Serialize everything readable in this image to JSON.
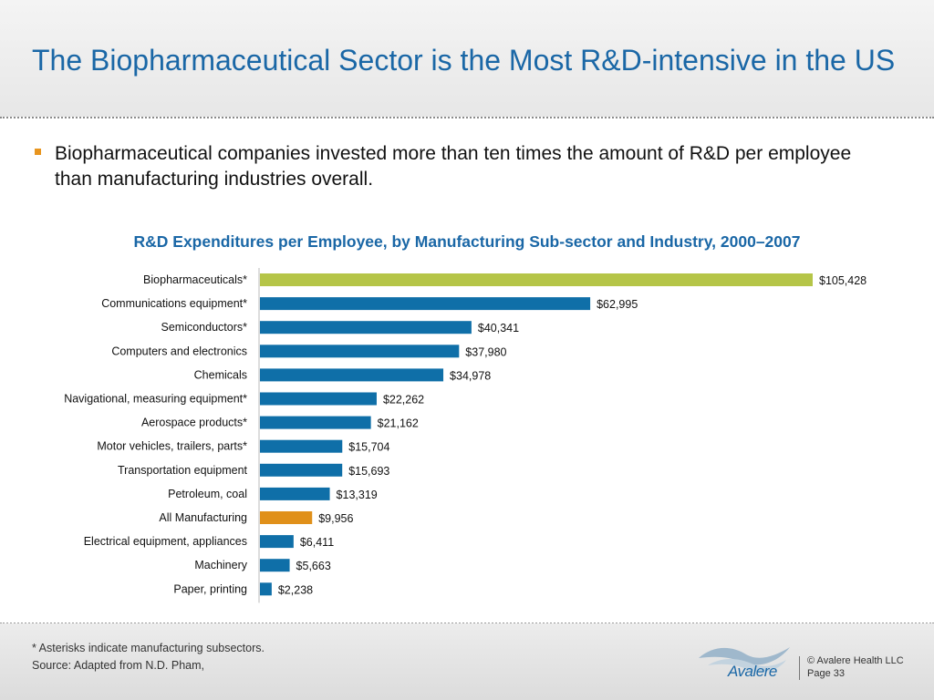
{
  "slide": {
    "title": "The Biopharmaceutical Sector is the Most R&D-intensive in the US",
    "bullet": "Biopharmaceutical companies invested more than ten times the amount of R&D per employee than manufacturing industries overall."
  },
  "chart_data": {
    "type": "bar",
    "orientation": "horizontal",
    "title": "R&D Expenditures per Employee, by Manufacturing Sub-sector and Industry, 2000–2007",
    "xlabel": "",
    "ylabel": "",
    "xlim": [
      0,
      110000
    ],
    "grid": false,
    "categories": [
      "Biopharmaceuticals*",
      "Communications equipment*",
      "Semiconductors*",
      "Computers and electronics",
      "Chemicals",
      "Navigational, measuring equipment*",
      "Aerospace products*",
      "Motor vehicles, trailers, parts*",
      "Transportation equipment",
      "Petroleum, coal",
      "All Manufacturing",
      "Electrical equipment, appliances",
      "Machinery",
      "Paper, printing"
    ],
    "values": [
      105428,
      62995,
      40341,
      37980,
      34978,
      22262,
      21162,
      15704,
      15693,
      13319,
      9956,
      6411,
      5663,
      2238
    ],
    "value_labels": [
      "$105,428",
      "$62,995",
      "$40,341",
      "$37,980",
      "$34,978",
      "$22,262",
      "$21,162",
      "$15,704",
      "$15,693",
      "$13,319",
      "$9,956",
      "$6,411",
      "$5,663",
      "$2,238"
    ],
    "colors": {
      "default": "#0f6fa8",
      "Biopharmaceuticals*": "#b5c548",
      "All Manufacturing": "#e0901a"
    }
  },
  "footer": {
    "footnote": "* Asterisks indicate manufacturing subsectors.",
    "source": "Source: Adapted from N.D. Pham,",
    "logo_text": "Avalere",
    "copyright": "© Avalere Health LLC",
    "page": "Page 33"
  }
}
